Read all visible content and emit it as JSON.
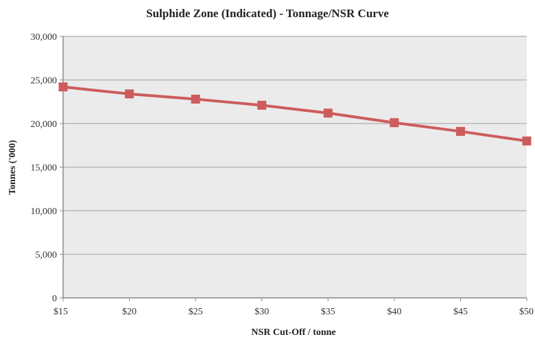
{
  "chart_data": {
    "type": "line",
    "title": "Sulphide Zone (Indicated) - Tonnage/NSR Curve",
    "xlabel": "NSR Cut-Off / tonne",
    "ylabel": "Tonnes ('000)",
    "categories": [
      "$15",
      "$20",
      "$25",
      "$30",
      "$35",
      "$40",
      "$45",
      "$50"
    ],
    "series": [
      {
        "values": [
          24200,
          23400,
          22800,
          22100,
          21200,
          20100,
          19100,
          18000
        ],
        "color": "#cd5c5c"
      }
    ],
    "ylim": [
      0,
      30000
    ],
    "yticks": [
      0,
      5000,
      10000,
      15000,
      20000,
      25000,
      30000
    ],
    "ytick_labels": [
      "0",
      "5,000",
      "10,000",
      "15,000",
      "20,000",
      "25,000",
      "30,000"
    ],
    "grid": true,
    "legend": "none",
    "colors": {
      "plot_background": "#ebebeb",
      "gridline": "#b8b8b8",
      "axis": "#8a8a8a"
    }
  }
}
